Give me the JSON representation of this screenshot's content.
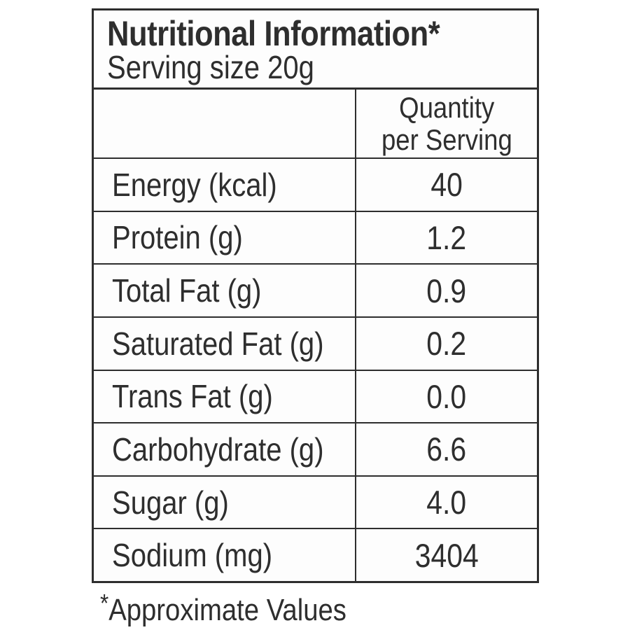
{
  "label": {
    "title": "Nutritional Information*",
    "serving_size": "Serving size 20g"
  },
  "table": {
    "column_header": {
      "line1": "Quantity",
      "line2": "per Serving"
    },
    "rows": [
      {
        "label": "Energy (kcal)",
        "value": "40"
      },
      {
        "label": "Protein (g)",
        "value": "1.2"
      },
      {
        "label": "Total Fat (g)",
        "value": "0.9"
      },
      {
        "label": "Saturated Fat (g)",
        "value": "0.2"
      },
      {
        "label": "Trans Fat (g)",
        "value": "0.0"
      },
      {
        "label": "Carbohydrate (g)",
        "value": "6.6"
      },
      {
        "label": "Sugar (g)",
        "value": "4.0"
      },
      {
        "label": "Sodium (mg)",
        "value": "3404"
      }
    ]
  },
  "footer": {
    "note_symbol": "*",
    "note_text": "Approximate Values"
  },
  "colors": {
    "text": "#2e2e2e",
    "border": "#2e2e2e",
    "background": "#fdfdfd",
    "page_background": "#ffffff"
  }
}
